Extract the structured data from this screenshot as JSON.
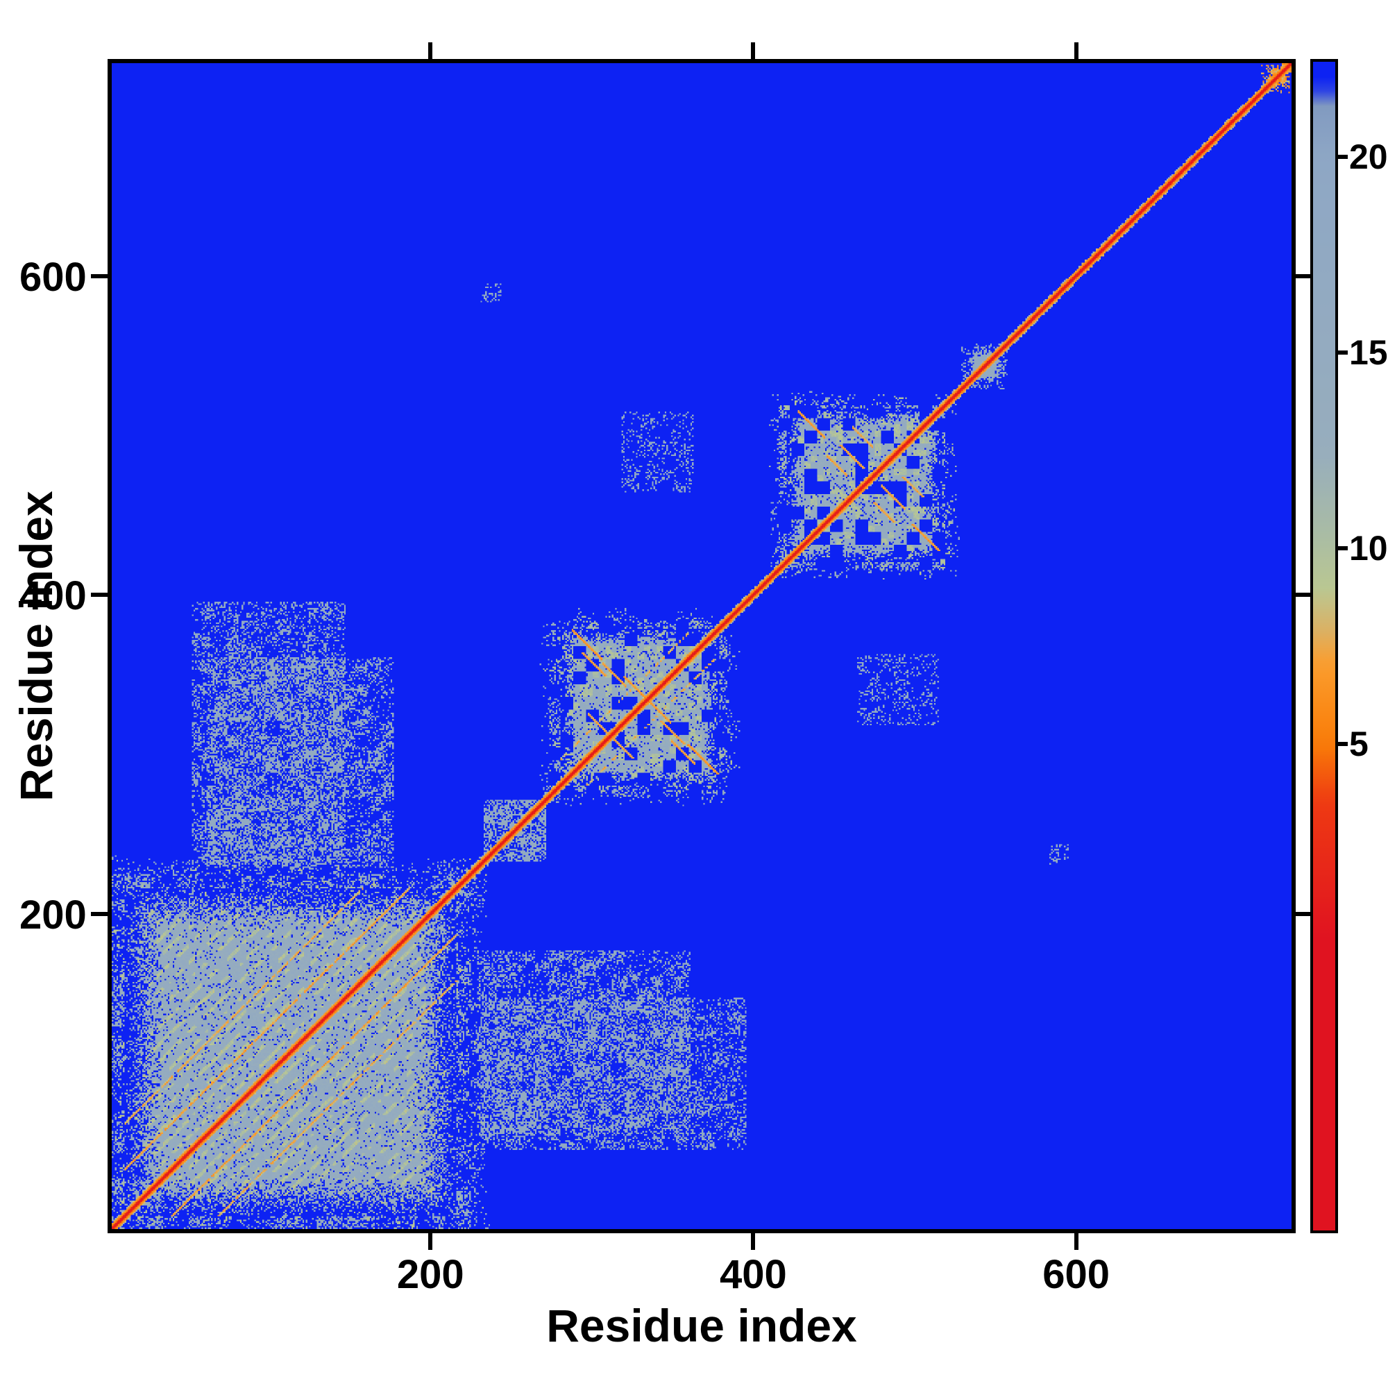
{
  "figure": {
    "background": "#ffffff"
  },
  "chart_data": {
    "type": "heatmap",
    "title": "",
    "xlabel": "Residue index",
    "ylabel": "Residue index",
    "x_range": [
      0,
      736
    ],
    "y_range": [
      0,
      736
    ],
    "x_ticks": [
      200,
      400,
      600
    ],
    "y_ticks": [
      200,
      400,
      600
    ],
    "grid": false,
    "legend": "colorbar-right",
    "colorbar": {
      "vmin": -7.5,
      "vmax": 22.5,
      "ticks": [
        5,
        10,
        15,
        20
      ]
    },
    "colormap": [
      {
        "v": 0,
        "color": "#e01320"
      },
      {
        "v": 3.5,
        "color": "#ee3a12"
      },
      {
        "v": 5,
        "color": "#f97c08"
      },
      {
        "v": 7,
        "color": "#fb9c2c"
      },
      {
        "v": 8,
        "color": "#d8b369"
      },
      {
        "v": 9,
        "color": "#b9c792"
      },
      {
        "v": 10.5,
        "color": "#a8bba6"
      },
      {
        "v": 12.5,
        "color": "#97adbd"
      },
      {
        "v": 20,
        "color": "#8ea7c5"
      },
      {
        "v": 21.5,
        "color": "#8099c0"
      },
      {
        "v": 21.85,
        "color": "#0d22f3"
      },
      {
        "v": 22.5,
        "color": "#0d22f3"
      }
    ],
    "features": {
      "matrix_size": 736,
      "background_value": 22.3,
      "symmetric": true,
      "diagonal": {
        "core_value": 0.4,
        "fringe_values": [
          1.6,
          5.2,
          6.4
        ]
      },
      "domains": [
        {
          "name": "domain-1",
          "start": 8,
          "end": 214,
          "fill_value": 14.5,
          "texture": "striped",
          "edge_fade": 24,
          "halo": 22,
          "sub_diagonals": [
            {
              "offset": 29,
              "value": 5.8,
              "gap": 0.06
            },
            {
              "offset": 58,
              "value": 6.2,
              "gap": 0.1
            }
          ]
        },
        {
          "name": "domain-2",
          "start": 280,
          "end": 378,
          "fill_value": 13.8,
          "texture": "patchy",
          "edge_fade": 10,
          "halo": 14,
          "sub_diagonals": [
            {
              "offset": 16,
              "value": 6.5,
              "gap": 0.5
            }
          ],
          "anti_streaks": [
            {
              "x": 296,
              "y": 368,
              "len": 9,
              "value": 5.6
            },
            {
              "x": 313,
              "y": 349,
              "len": 7,
              "value": 6.0
            },
            {
              "x": 303,
              "y": 318,
              "len": 6,
              "value": 6.2
            },
            {
              "x": 340,
              "y": 327,
              "len": 8,
              "value": 5.8
            },
            {
              "x": 356,
              "y": 300,
              "len": 7,
              "value": 6.0
            }
          ]
        },
        {
          "name": "domain-3",
          "start": 421,
          "end": 517,
          "fill_value": 14.2,
          "texture": "patchy",
          "edge_fade": 9,
          "halo": 12,
          "anti_streaks": [
            {
              "x": 436,
              "y": 507,
              "len": 8,
              "value": 5.8
            },
            {
              "x": 452,
              "y": 481,
              "len": 6,
              "value": 6.2
            },
            {
              "x": 468,
              "y": 499,
              "len": 6,
              "value": 6.4
            },
            {
              "x": 487,
              "y": 461,
              "len": 7,
              "value": 6.0
            }
          ]
        },
        {
          "name": "diagonal-blob",
          "start": 533,
          "end": 555,
          "fill_value": 15.5,
          "texture": "solid",
          "edge_fade": 6,
          "halo": 4
        },
        {
          "name": "c-terminal-blob",
          "start": 719,
          "end": 735,
          "fill_value": 7.2,
          "texture": "solid",
          "edge_fade": 5,
          "halo": 3
        }
      ],
      "speckle_regions": [
        {
          "x": [
            50,
            145
          ],
          "y": [
            230,
            395
          ],
          "density": 0.26,
          "value": 16.5
        },
        {
          "x": [
            228,
            360
          ],
          "y": [
            60,
            175
          ],
          "density": 0.28,
          "value": 16.0
        },
        {
          "x": [
            232,
            270
          ],
          "y": [
            232,
            270
          ],
          "density": 0.3,
          "value": 16.0
        },
        {
          "x": [
            318,
            362
          ],
          "y": [
            465,
            515
          ],
          "density": 0.15,
          "value": 16.5
        },
        {
          "x": [
            230,
            242
          ],
          "y": [
            585,
            596
          ],
          "density": 0.25,
          "value": 16.5
        }
      ]
    }
  }
}
